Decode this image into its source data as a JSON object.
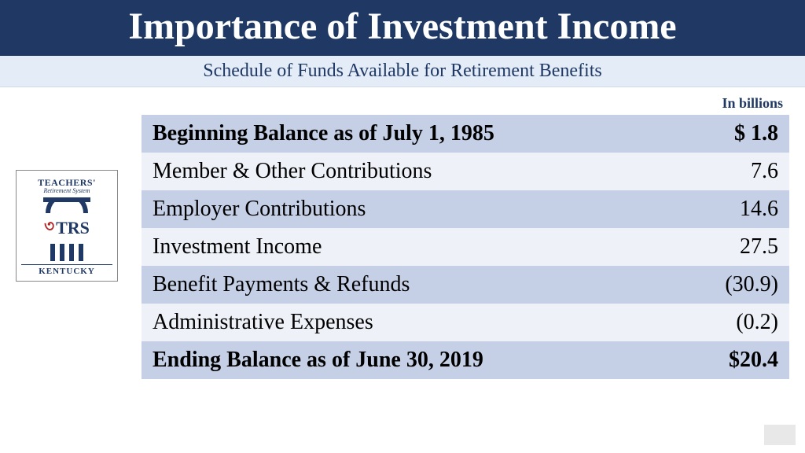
{
  "header": {
    "title": "Importance of Investment Income",
    "subtitle": "Schedule of Funds Available for Retirement Benefits",
    "units": "In billions"
  },
  "logo": {
    "line1": "TEACHERS'",
    "line2": "Retirement System",
    "acronym": "TRS",
    "state": "KENTUCKY"
  },
  "table": {
    "rows": [
      {
        "label": "Beginning Balance as of July 1, 1985",
        "value": "$ 1.8",
        "bold": true,
        "shade": "dark"
      },
      {
        "label": "Member & Other Contributions",
        "value": "7.6",
        "bold": false,
        "shade": "light"
      },
      {
        "label": "Employer Contributions",
        "value": "14.6",
        "bold": false,
        "shade": "dark"
      },
      {
        "label": "Investment Income",
        "value": "27.5",
        "bold": false,
        "shade": "light"
      },
      {
        "label": "Benefit Payments & Refunds",
        "value": "(30.9)",
        "bold": false,
        "shade": "dark"
      },
      {
        "label": "Administrative Expenses",
        "value": "(0.2)",
        "bold": false,
        "shade": "light"
      },
      {
        "label": "Ending Balance as of June 30, 2019",
        "value": "$20.4",
        "bold": true,
        "shade": "dark"
      }
    ]
  },
  "colors": {
    "brand_navy": "#1f3864",
    "row_dark": "#c5d0e6",
    "row_light": "#eef2f8",
    "subheader_bg": "#e3ecf7"
  }
}
